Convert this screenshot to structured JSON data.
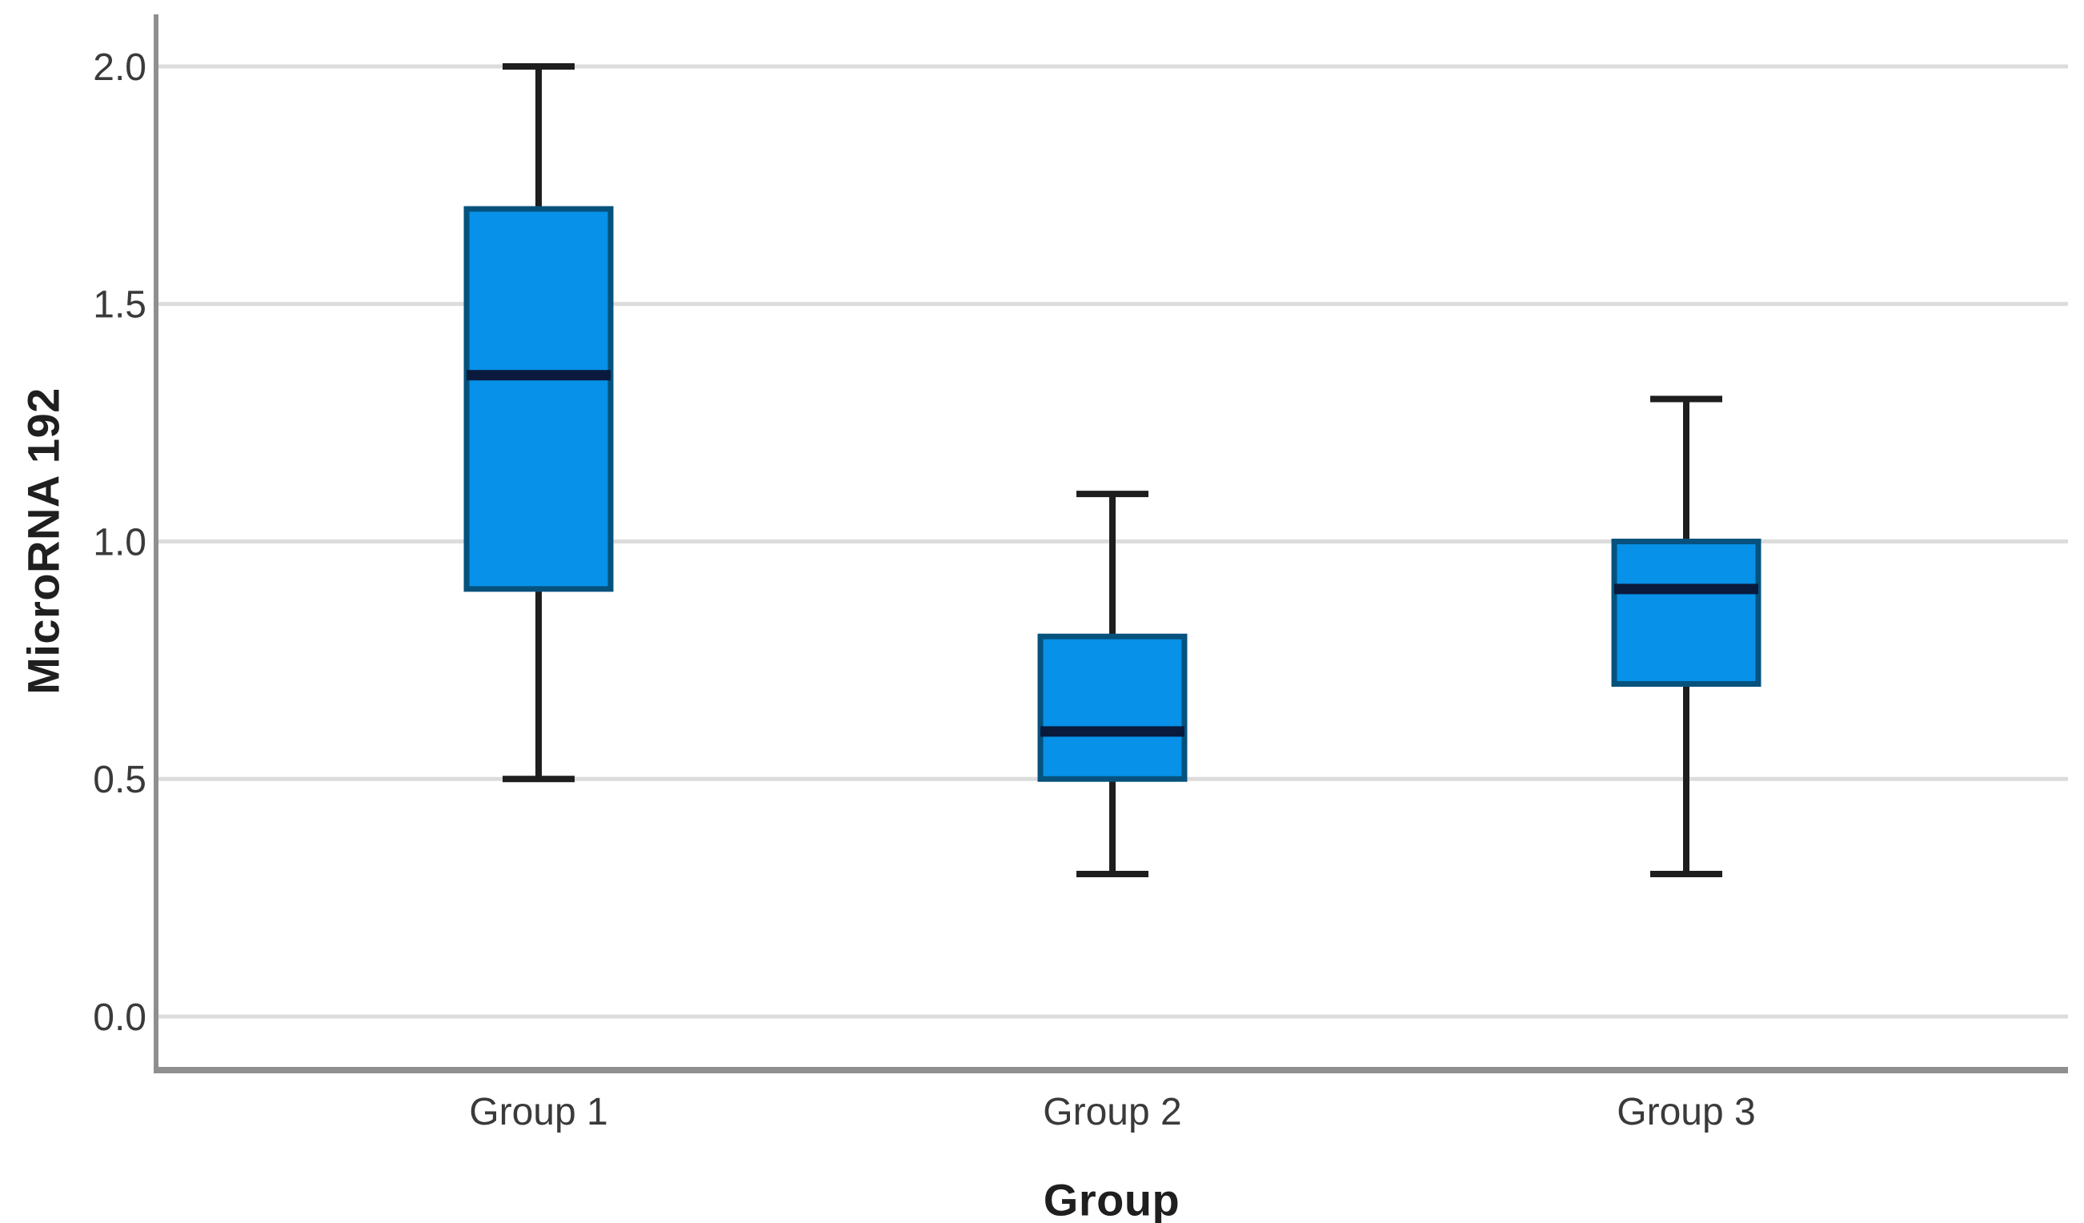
{
  "figure": {
    "background": "#FFFFFF"
  },
  "chart_data": {
    "type": "boxplot",
    "title": "",
    "xlabel": "Group",
    "ylabel": "MicroRNA 192",
    "categories": [
      "Group 1",
      "Group 2",
      "Group 3"
    ],
    "series": [
      {
        "name": "Group 1",
        "whisker_min": 0.5,
        "q1": 0.9,
        "median": 1.35,
        "q3": 1.7,
        "whisker_max": 2.0
      },
      {
        "name": "Group 2",
        "whisker_min": 0.3,
        "q1": 0.5,
        "median": 0.6,
        "q3": 0.8,
        "whisker_max": 1.1
      },
      {
        "name": "Group 3",
        "whisker_min": 0.3,
        "q1": 0.7,
        "median": 0.9,
        "q3": 1.0,
        "whisker_max": 1.3
      }
    ],
    "yticks": [
      0.0,
      0.5,
      1.0,
      1.5,
      2.0
    ],
    "ytick_labels": [
      "0.0",
      "0.5",
      "1.0",
      "1.5",
      "2.0"
    ],
    "ylim": [
      0.0,
      2.0
    ],
    "grid": "horizontal",
    "legend": "none",
    "colors": {
      "box_fill": "#0791E8",
      "box_border": "#06527D",
      "median_line": "#0A1A3C",
      "whisker": "#1E1E1E",
      "gridline": "#DCDCDC",
      "axis_line": "#8F8F8F",
      "tick_text": "#3A3A3A",
      "title_text": "#1F1F1F"
    }
  }
}
